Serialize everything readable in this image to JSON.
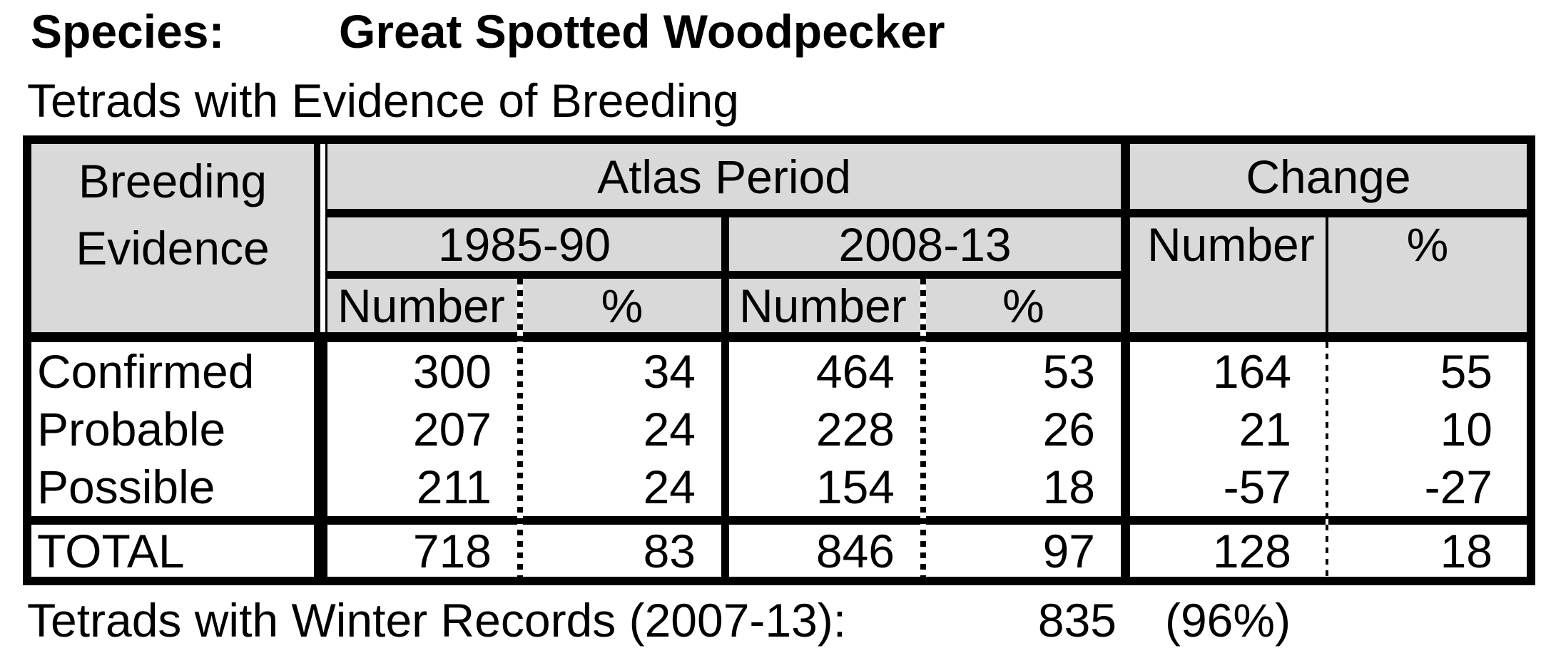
{
  "title": {
    "label": "Species:",
    "value": "Great Spotted Woodpecker"
  },
  "subtitle": "Tetrads with Evidence of Breeding",
  "table": {
    "corner": {
      "line1": "Breeding",
      "line2": "Evidence"
    },
    "headers": {
      "atlas_period": "Atlas Period",
      "change": "Change",
      "period1": "1985-90",
      "period2": "2008-13",
      "number": "Number",
      "percent": "%"
    },
    "rows": [
      {
        "label": "Confirmed",
        "p1_number": "300",
        "p1_percent": "34",
        "p2_number": "464",
        "p2_percent": "53",
        "change_number": "164",
        "change_percent": "55"
      },
      {
        "label": "Probable",
        "p1_number": "207",
        "p1_percent": "24",
        "p2_number": "228",
        "p2_percent": "26",
        "change_number": "21",
        "change_percent": "10"
      },
      {
        "label": "Possible",
        "p1_number": "211",
        "p1_percent": "24",
        "p2_number": "154",
        "p2_percent": "18",
        "change_number": "-57",
        "change_percent": "-27"
      }
    ],
    "total": {
      "label": "TOTAL",
      "p1_number": "718",
      "p1_percent": "83",
      "p2_number": "846",
      "p2_percent": "97",
      "change_number": "128",
      "change_percent": "18"
    }
  },
  "footer": {
    "label": "Tetrads with Winter Records (2007-13):",
    "value": "835",
    "percent": "(96%)"
  },
  "colors": {
    "header_bg": "#d9d9d9",
    "border": "#000000",
    "text": "#000000",
    "background": "#ffffff"
  }
}
